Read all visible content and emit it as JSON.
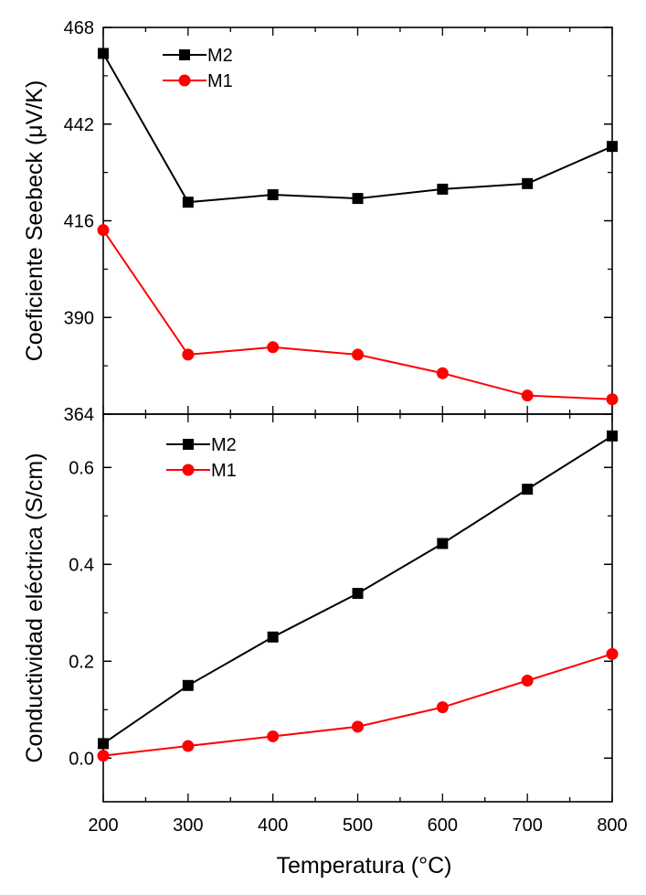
{
  "chart_data": [
    {
      "type": "line",
      "panel": "top",
      "ylabel": "Coeficiente Seebeck (μV/K)",
      "ylim": [
        364,
        468
      ],
      "yticks": [
        364,
        390,
        416,
        442,
        468
      ],
      "xlim": [
        200,
        800
      ],
      "x": [
        200,
        300,
        400,
        500,
        600,
        700,
        800
      ],
      "legend_position": "top-left",
      "series": [
        {
          "name": "M2",
          "color": "#000000",
          "marker": "square",
          "values": [
            461,
            421,
            423,
            422,
            424.5,
            426,
            436
          ]
        },
        {
          "name": "M1",
          "color": "#ff0000",
          "marker": "circle",
          "values": [
            413.5,
            380,
            382,
            380,
            375,
            369,
            368
          ]
        }
      ]
    },
    {
      "type": "line",
      "panel": "bottom",
      "ylabel": "Conductividad eléctrica (S/cm)",
      "ylim": [
        -0.09,
        0.71
      ],
      "yticks": [
        0.0,
        0.2,
        0.4,
        0.6
      ],
      "ytick_labels": [
        "0.0",
        "0.2",
        "0.4",
        "0.6"
      ],
      "xlim": [
        200,
        800
      ],
      "x": [
        200,
        300,
        400,
        500,
        600,
        700,
        800
      ],
      "xticks": [
        200,
        300,
        400,
        500,
        600,
        700,
        800
      ],
      "xlabel": "Temperatura (°C)",
      "legend_position": "top-left",
      "series": [
        {
          "name": "M2",
          "color": "#000000",
          "marker": "square",
          "values": [
            0.03,
            0.15,
            0.25,
            0.34,
            0.443,
            0.555,
            0.665
          ]
        },
        {
          "name": "M1",
          "color": "#ff0000",
          "marker": "circle",
          "values": [
            0.005,
            0.025,
            0.045,
            0.065,
            0.105,
            0.16,
            0.215
          ]
        }
      ]
    }
  ]
}
